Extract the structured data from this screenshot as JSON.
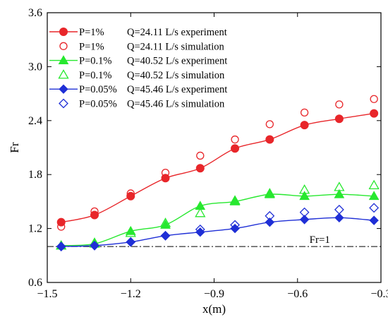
{
  "chart_data": {
    "type": "line",
    "title": "",
    "xlabel": "x(m)",
    "ylabel": "Fr",
    "xlim": [
      -1.5,
      -0.3
    ],
    "ylim": [
      0.6,
      3.6
    ],
    "xticks": [
      -1.5,
      -1.2,
      -0.9,
      -0.6,
      -0.3
    ],
    "xtick_labels": [
      "−1.5",
      "−1.2",
      "−0.9",
      "−0.6",
      "−0.3"
    ],
    "yticks": [
      0.6,
      1.2,
      1.8,
      2.4,
      3.0,
      3.6
    ],
    "ytick_labels": [
      "0.6",
      "1.2",
      "1.8",
      "2.4",
      "3.0",
      "3.6"
    ],
    "grid": false,
    "legend_position": "top-left",
    "x": [
      -1.45,
      -1.33,
      -1.2,
      -1.075,
      -0.95,
      -0.825,
      -0.7,
      -0.575,
      -0.45,
      -0.325
    ],
    "series": [
      {
        "key": "exp1",
        "legend_p": "P=1%",
        "legend_q": "Q=24.11 L/s experiment",
        "color": "#e8262a",
        "marker": "circle",
        "filled": true,
        "line": true,
        "values": [
          1.27,
          1.35,
          1.56,
          1.76,
          1.87,
          2.09,
          2.19,
          2.35,
          2.42,
          2.48
        ]
      },
      {
        "key": "sim1",
        "legend_p": "P=1%",
        "legend_q": "Q=24.11 L/s simulation",
        "color": "#e8262a",
        "marker": "circle",
        "filled": false,
        "line": false,
        "values": [
          1.22,
          1.39,
          1.59,
          1.82,
          2.01,
          2.19,
          2.36,
          2.49,
          2.58,
          2.64
        ]
      },
      {
        "key": "exp01",
        "legend_p": "P=0.1%",
        "legend_q": "Q=40.52 L/s experiment",
        "color": "#27e82f",
        "marker": "triangle",
        "filled": true,
        "line": true,
        "values": [
          1.01,
          1.03,
          1.17,
          1.24,
          1.45,
          1.5,
          1.58,
          1.56,
          1.58,
          1.56
        ]
      },
      {
        "key": "sim01",
        "legend_p": "P=0.1%",
        "legend_q": "Q=40.52 L/s simulation",
        "color": "#27e82f",
        "marker": "triangle",
        "filled": false,
        "line": false,
        "values": [
          1.01,
          1.04,
          1.15,
          1.26,
          1.37,
          1.51,
          1.59,
          1.63,
          1.66,
          1.68
        ]
      },
      {
        "key": "exp005",
        "legend_p": "P=0.05%",
        "legend_q": "Q=45.46 L/s experiment",
        "color": "#1f2fd6",
        "marker": "diamond",
        "filled": true,
        "line": true,
        "values": [
          1.0,
          1.01,
          1.05,
          1.12,
          1.16,
          1.2,
          1.27,
          1.3,
          1.32,
          1.29
        ]
      },
      {
        "key": "sim005",
        "legend_p": "P=0.05%",
        "legend_q": "Q=45.46 L/s simulation",
        "color": "#1f2fd6",
        "marker": "diamond",
        "filled": false,
        "line": false,
        "values": [
          1.0,
          1.01,
          1.05,
          1.12,
          1.19,
          1.24,
          1.34,
          1.38,
          1.41,
          1.43
        ]
      }
    ],
    "reference_line": {
      "y": 1.0,
      "label": "Fr=1",
      "style": "dash-dot",
      "color": "#000000"
    }
  }
}
